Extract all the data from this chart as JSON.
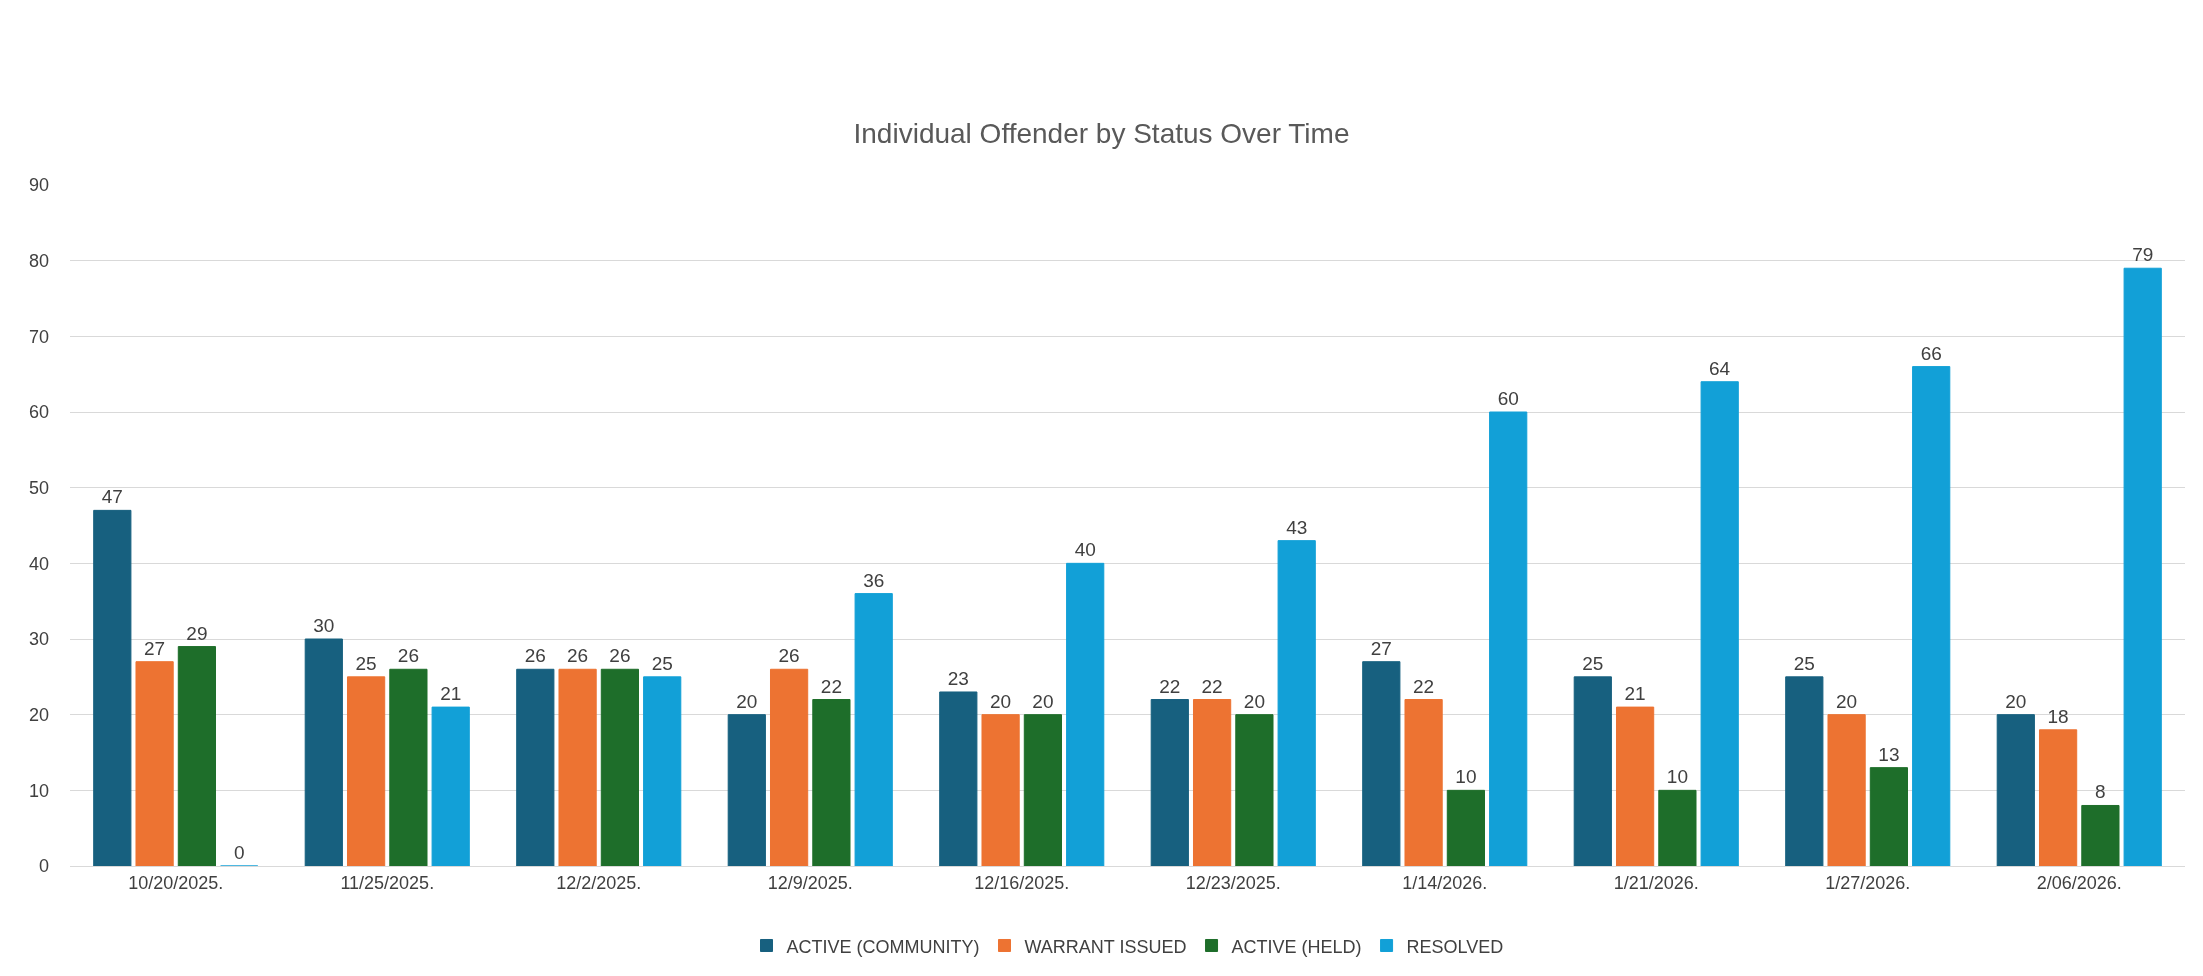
{
  "chart_data": {
    "type": "bar",
    "title": "Individual Offender by Status Over Time",
    "categories": [
      "10/20/2025.",
      "11/25/2025.",
      "12/2/2025.",
      "12/9/2025.",
      "12/16/2025.",
      "12/23/2025.",
      "1/14/2026.",
      "1/21/2026.",
      "1/27/2026.",
      "2/06/2026."
    ],
    "series": [
      {
        "name": "ACTIVE (COMMUNITY)",
        "color": "#17607f",
        "values": [
          47,
          30,
          26,
          20,
          23,
          22,
          27,
          25,
          25,
          20
        ]
      },
      {
        "name": "WARRANT ISSUED",
        "color": "#ed7332",
        "values": [
          27,
          25,
          26,
          26,
          20,
          22,
          22,
          21,
          20,
          18
        ]
      },
      {
        "name": "ACTIVE (HELD)",
        "color": "#1e6e2a",
        "values": [
          29,
          26,
          26,
          22,
          20,
          20,
          10,
          10,
          13,
          8
        ]
      },
      {
        "name": "RESOLVED",
        "color": "#12a0d7",
        "values": [
          0,
          21,
          25,
          36,
          40,
          43,
          60,
          64,
          66,
          79
        ]
      }
    ],
    "ylim": [
      0,
      90
    ],
    "yticks": [
      0,
      10,
      20,
      30,
      40,
      50,
      60,
      70,
      80,
      90
    ],
    "grid": "y",
    "data_labels": true,
    "legend": "bottom"
  }
}
